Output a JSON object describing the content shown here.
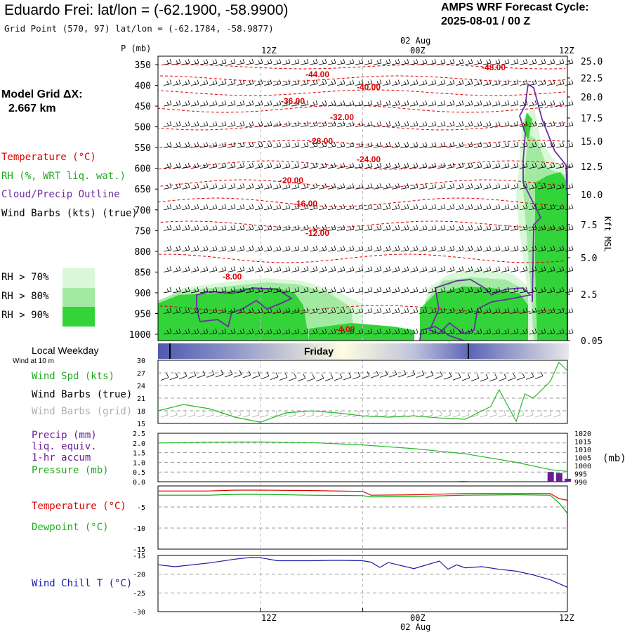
{
  "header": {
    "station_title": "Eduardo Frei:  lat/lon = (-62.1900, -58.9900)",
    "grid_point": "Grid Point (570, 97) lat/lon = (-62.1784, -58.9877)",
    "forecast_label": "AMPS WRF Forecast Cycle:",
    "forecast_cycle": "2025-08-01 / 00  Z",
    "model_grid_label": "Model Grid ΔX:",
    "model_grid_value": "2.667 km"
  },
  "side_legend": {
    "temperature": "Temperature (°C)",
    "rh": "RH (%, WRT liq. wat.)",
    "cloud": "Cloud/Precip Outline",
    "wind_barbs": "Wind Barbs (kts) (true)",
    "rh70": "RH > 70%",
    "rh80": "RH > 80%",
    "rh90": "RH > 90%",
    "rh_colors": [
      "#d8f8d8",
      "#a2eaa2",
      "#33d33a"
    ]
  },
  "time_axis": {
    "top_ticks": [
      "12Z",
      "00Z",
      "12Z"
    ],
    "date_label": "02 Aug",
    "weekday_label": "Local Weekday",
    "weekday": "Friday",
    "wind_at": "Wind at 10 m"
  },
  "colors": {
    "temperature": "#dd0000",
    "dewpoint": "#00aa00",
    "wind_speed": "#22bb22",
    "pressure": "#22bb22",
    "precip": "#6a1b9a",
    "cloud": "#6a2fa0",
    "wind_chill": "#1a1aaa",
    "grid_barbs": "#aaaaaa"
  },
  "chart_data": [
    {
      "type": "area",
      "panel": "cross-section",
      "ylabel": "P (mb)",
      "y_tick_labels": [
        "350",
        "400",
        "450",
        "500",
        "550",
        "600",
        "650",
        "700",
        "750",
        "800",
        "850",
        "900",
        "950",
        "1000"
      ],
      "right_axis_label": "Kft MSL",
      "right_tick_labels": [
        "25.0",
        "22.5",
        "20.0",
        "17.5",
        "15.0",
        "12.5",
        "10.0",
        "7.5",
        "5.0",
        "2.5",
        "0.05"
      ],
      "isotherm_labels": [
        "-44.00",
        "-40.00",
        "-36.00",
        "-32.00",
        "-28.00",
        "-24.00",
        "-20.00",
        "-16.00",
        "-12.00",
        "-8.00",
        "-4.00",
        "-48.00"
      ],
      "isotherms_C": [
        -48,
        -44,
        -40,
        -36,
        -32,
        -28,
        -24,
        -20,
        -16,
        -12,
        -8,
        -4
      ]
    },
    {
      "type": "line",
      "panel": "surface wind",
      "labels": [
        "Wind Spd (kts)",
        "Wind Barbs (true)",
        "Wind Barbs (grid)"
      ],
      "y_tick_labels": [
        "30",
        "27",
        "24",
        "21",
        "18",
        "15"
      ],
      "ylim": [
        15,
        30
      ],
      "x_hours": [
        0,
        3,
        6,
        9,
        12,
        15,
        18,
        21,
        24,
        27,
        30,
        33,
        36,
        38,
        39,
        40,
        42,
        43,
        44,
        45,
        46,
        47,
        48
      ],
      "wind_speed_kts": [
        18,
        19.5,
        18.5,
        16.5,
        15.3,
        17.5,
        18,
        17.5,
        16.8,
        16.5,
        16.8,
        16.3,
        16,
        18,
        19,
        23,
        15.5,
        22,
        21,
        23,
        25,
        29.5,
        27.5
      ]
    },
    {
      "type": "line",
      "panel": "precip / pressure",
      "labels": [
        "Precip (mm)",
        "liq. equiv.",
        "1-hr accum",
        "Pressure (mb)"
      ],
      "y_tick_labels": [
        "2.5",
        "2.0",
        "1.5",
        "1.0",
        "0.5",
        "0.0"
      ],
      "ylim": [
        0,
        2.5
      ],
      "right_tick_labels": [
        "1020",
        "1015",
        "1010",
        "1005",
        "1000",
        "995",
        "990"
      ],
      "right_unit": "(mb)",
      "right_ylim": [
        990,
        1020
      ],
      "x_hours": [
        0,
        6,
        12,
        18,
        24,
        30,
        36,
        42,
        46,
        48
      ],
      "pressure_mb": [
        1014,
        1014.5,
        1014.6,
        1014.2,
        1012.8,
        1010.5,
        1007.3,
        1002,
        997.5,
        996.4
      ],
      "precip_x_hours": [
        35.5,
        36,
        46,
        47,
        48
      ],
      "precip_mm": [
        0.03,
        0.03,
        0.5,
        0.45,
        0.15
      ]
    },
    {
      "type": "line",
      "panel": "temperature",
      "labels": [
        "Temperature (°C)",
        "Dewpoint (°C)"
      ],
      "y_tick_labels": [
        "-5",
        "-10",
        "-15"
      ],
      "ylim": [
        -15,
        0
      ],
      "x_hours": [
        0,
        6,
        9,
        12,
        18,
        24,
        25,
        30,
        36,
        42,
        46,
        47,
        48
      ],
      "temperature_C": [
        -1.2,
        -1.2,
        -1.0,
        -1.0,
        -1.1,
        -1.3,
        -2.2,
        -2.1,
        -1.8,
        -1.8,
        -1.8,
        -3.0,
        -3.4
      ],
      "dewpoint_C": [
        -2.2,
        -2.2,
        -2.0,
        -2.0,
        -2.2,
        -2.3,
        -2.6,
        -2.5,
        -2.2,
        -2.1,
        -2.2,
        -4.0,
        -6.5
      ]
    },
    {
      "type": "line",
      "panel": "wind chill",
      "labels": [
        "Wind Chill T (°C)"
      ],
      "y_tick_labels": [
        "-15",
        "-20",
        "-25",
        "-30"
      ],
      "ylim": [
        -30,
        -15
      ],
      "x_hours": [
        0,
        2,
        6,
        9,
        11,
        12,
        14,
        18,
        21,
        24,
        25,
        26,
        27,
        30,
        33,
        34,
        35,
        36,
        38,
        40,
        42,
        44,
        46,
        48
      ],
      "wind_chill_C": [
        -17.5,
        -18,
        -17,
        -16,
        -15.5,
        -15.6,
        -16.4,
        -16.4,
        -16.3,
        -16.4,
        -16.8,
        -18.2,
        -16.9,
        -18.5,
        -16.5,
        -18.7,
        -17.5,
        -18.3,
        -18,
        -18.7,
        -19.2,
        -20.2,
        -21.5,
        -23.5
      ]
    }
  ]
}
